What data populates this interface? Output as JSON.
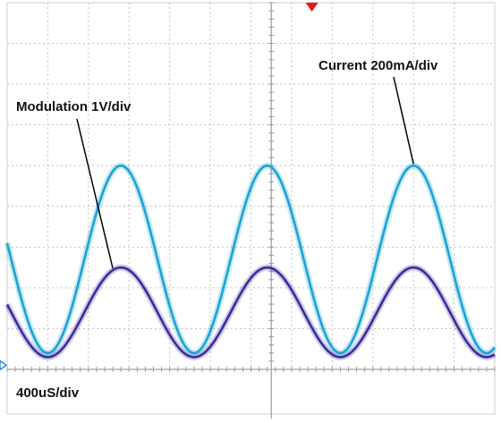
{
  "chart_data": {
    "type": "line",
    "grid": true,
    "divisions": {
      "x": 12,
      "y": 9
    },
    "x_scale_label": "400uS/div",
    "xlim": [
      0,
      12
    ],
    "ylim": [
      0,
      9
    ],
    "trigger_marker": {
      "x": 7.5,
      "color": "#e8141b"
    },
    "ground_marker": {
      "y": 0.1,
      "color": "#3a86c8"
    },
    "series": [
      {
        "name": "Current 200mA/div",
        "color": "#1ba3d4",
        "shape": "sine",
        "period": 3.6,
        "first_peak_x": 2.8,
        "max": 5.0,
        "min": 0.4
      },
      {
        "name": "Modulation 1V/div",
        "color": "#3a2d9c",
        "shape": "sine",
        "period": 3.6,
        "first_peak_x": 2.8,
        "max": 2.5,
        "min": 0.3
      }
    ],
    "annotations": [
      {
        "text": "Current 200mA/div",
        "series": 0,
        "points_to_x": 10.0
      },
      {
        "text": "Modulation 1V/div",
        "series": 1,
        "points_to_x": 2.6
      }
    ]
  }
}
